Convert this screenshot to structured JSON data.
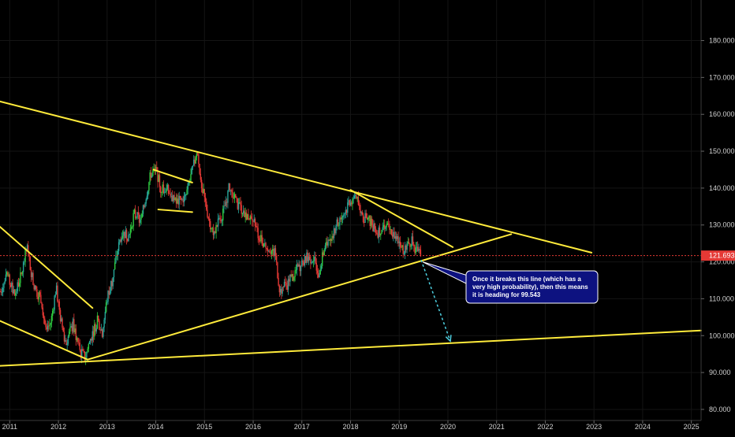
{
  "chart_data": {
    "type": "candlestick",
    "instrument_style": "price chart with yellow trendlines",
    "title": "",
    "xlabel": "",
    "ylabel": "",
    "x_range_years": [
      2010.8,
      2025.2
    ],
    "y_range": [
      77,
      191
    ],
    "x_tick_labels": [
      "2011",
      "2012",
      "2013",
      "2014",
      "2015",
      "2016",
      "2017",
      "2018",
      "2019",
      "2020",
      "2021",
      "2022",
      "2023",
      "2024",
      "2025"
    ],
    "y_tick_labels": [
      "80.000",
      "90.000",
      "100.000",
      "110.000",
      "120.000",
      "130.000",
      "140.000",
      "150.000",
      "160.000",
      "170.000",
      "180.000"
    ],
    "current_price": {
      "value": 121.693,
      "label": "121.693",
      "color": "#e53935"
    },
    "colors": {
      "background": "#000000",
      "up_candle": "#26a69a",
      "up_candle_alt": "#2ecc40",
      "down_candle": "#e53935",
      "trendline": "#ffeb3b",
      "projection": "#4dd0e1",
      "callout_fill": "#0d1280",
      "callout_border": "#ffffff"
    },
    "price_path": [
      [
        2010.8,
        112
      ],
      [
        2010.95,
        116
      ],
      [
        2011.1,
        111
      ],
      [
        2011.25,
        117
      ],
      [
        2011.35,
        124
      ],
      [
        2011.5,
        113
      ],
      [
        2011.65,
        110
      ],
      [
        2011.75,
        100
      ],
      [
        2011.85,
        104
      ],
      [
        2011.95,
        113
      ],
      [
        2012.05,
        104
      ],
      [
        2012.15,
        98
      ],
      [
        2012.3,
        103
      ],
      [
        2012.45,
        95.5
      ],
      [
        2012.55,
        94
      ],
      [
        2012.65,
        99
      ],
      [
        2012.8,
        104
      ],
      [
        2012.9,
        101
      ],
      [
        2013.0,
        110
      ],
      [
        2013.1,
        115
      ],
      [
        2013.2,
        122
      ],
      [
        2013.3,
        128
      ],
      [
        2013.45,
        127
      ],
      [
        2013.55,
        133
      ],
      [
        2013.7,
        131
      ],
      [
        2013.8,
        138
      ],
      [
        2013.9,
        144
      ],
      [
        2014.0,
        145
      ],
      [
        2014.1,
        140
      ],
      [
        2014.25,
        140
      ],
      [
        2014.4,
        136
      ],
      [
        2014.6,
        137
      ],
      [
        2014.7,
        142
      ],
      [
        2014.85,
        150
      ],
      [
        2014.95,
        140
      ],
      [
        2015.1,
        131
      ],
      [
        2015.2,
        128
      ],
      [
        2015.4,
        134
      ],
      [
        2015.5,
        140
      ],
      [
        2015.65,
        136
      ],
      [
        2015.85,
        133
      ],
      [
        2016.0,
        131
      ],
      [
        2016.15,
        126
      ],
      [
        2016.3,
        124
      ],
      [
        2016.45,
        122
      ],
      [
        2016.55,
        112
      ],
      [
        2016.7,
        114
      ],
      [
        2016.9,
        118
      ],
      [
        2017.1,
        121
      ],
      [
        2017.25,
        121
      ],
      [
        2017.35,
        117
      ],
      [
        2017.45,
        123
      ],
      [
        2017.6,
        127
      ],
      [
        2017.75,
        131
      ],
      [
        2017.9,
        134
      ],
      [
        2018.0,
        136
      ],
      [
        2018.1,
        138
      ],
      [
        2018.25,
        132
      ],
      [
        2018.4,
        131
      ],
      [
        2018.55,
        128
      ],
      [
        2018.7,
        130
      ],
      [
        2018.85,
        128
      ],
      [
        2019.0,
        126
      ],
      [
        2019.1,
        123
      ],
      [
        2019.25,
        126
      ],
      [
        2019.35,
        123
      ],
      [
        2019.45,
        121.693
      ]
    ],
    "trendlines": [
      {
        "x1": 2010.8,
        "y1": 163.5,
        "x2": 2022.95,
        "y2": 122.5
      },
      {
        "x1": 2018.0,
        "y1": 139.5,
        "x2": 2020.1,
        "y2": 124.0
      },
      {
        "x1": 2012.6,
        "y1": 93.5,
        "x2": 2021.3,
        "y2": 127.5
      },
      {
        "x1": 2010.8,
        "y1": 91.8,
        "x2": 2025.2,
        "y2": 101.4
      },
      {
        "x1": 2010.8,
        "y1": 129.5,
        "x2": 2012.7,
        "y2": 107.5
      },
      {
        "x1": 2010.8,
        "y1": 104.0,
        "x2": 2012.6,
        "y2": 93.5
      },
      {
        "x1": 2013.95,
        "y1": 145.0,
        "x2": 2014.75,
        "y2": 141.5
      },
      {
        "x1": 2014.05,
        "y1": 134.2,
        "x2": 2014.75,
        "y2": 133.5
      }
    ],
    "projection": {
      "x1": 2019.45,
      "y1": 120.5,
      "x2": 2020.05,
      "y2": 98.5
    },
    "annotation": {
      "text": "Once it breaks this line (which has a very high probability), then this means it is heading for 99.543",
      "lines": [
        "Once it breaks this line (which has a",
        "very high probability), then this means",
        "it is heading for 99.543"
      ],
      "pointer_from": [
        2019.45,
        120.2
      ]
    }
  }
}
